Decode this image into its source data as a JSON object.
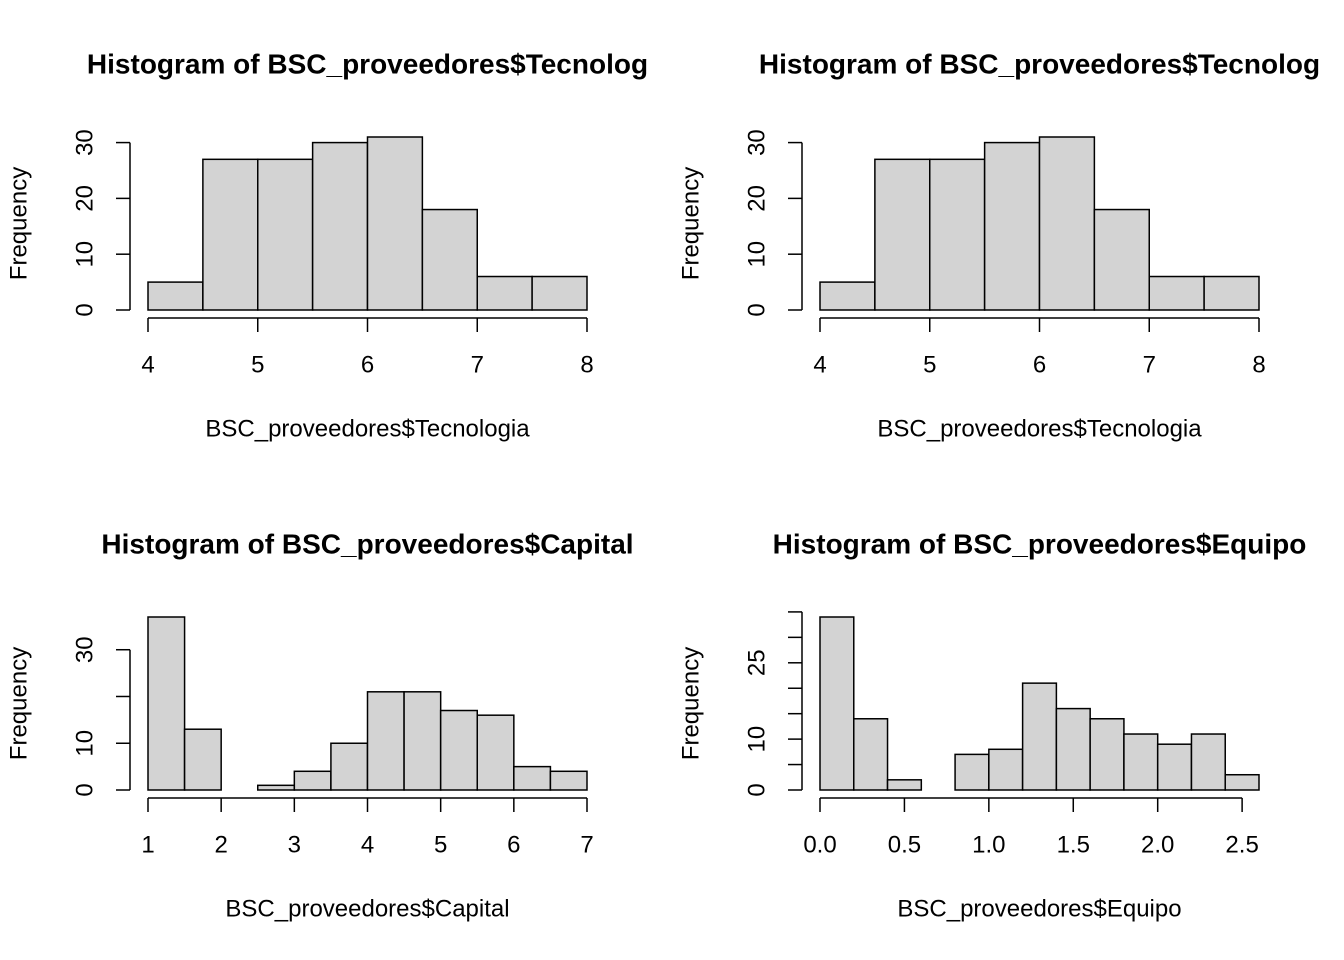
{
  "chart_data": [
    {
      "type": "histogram",
      "title": "Histogram of BSC_proveedores$Tecnolog",
      "xlabel": "BSC_proveedores$Tecnologia",
      "ylabel": "Frequency",
      "bins": [
        4,
        4.5,
        5,
        5.5,
        6,
        6.5,
        7,
        7.5,
        8
      ],
      "values": [
        5,
        27,
        27,
        30,
        31,
        18,
        6,
        6
      ],
      "color": "#d3d3d3",
      "xlim": [
        4,
        8
      ],
      "ylim": [
        0,
        31
      ],
      "xticks": [
        4,
        5,
        6,
        7,
        8
      ],
      "yticks": [
        0,
        10,
        20,
        30
      ]
    },
    {
      "type": "histogram",
      "title": "Histogram of BSC_proveedores$Tecnolog",
      "xlabel": "BSC_proveedores$Tecnologia",
      "ylabel": "Frequency",
      "bins": [
        4,
        4.5,
        5,
        5.5,
        6,
        6.5,
        7,
        7.5,
        8
      ],
      "values": [
        5,
        27,
        27,
        30,
        31,
        18,
        6,
        6
      ],
      "color": "#d3d3d3",
      "xlim": [
        4,
        8
      ],
      "ylim": [
        0,
        31
      ],
      "xticks": [
        4,
        5,
        6,
        7,
        8
      ],
      "yticks": [
        0,
        10,
        20,
        30
      ]
    },
    {
      "type": "histogram",
      "title": "Histogram of BSC_proveedores$Capital",
      "xlabel": "BSC_proveedores$Capital",
      "ylabel": "Frequency",
      "bins": [
        1,
        1.5,
        2,
        2.5,
        3,
        3.5,
        4,
        4.5,
        5,
        5.5,
        6,
        6.5,
        7
      ],
      "values": [
        37,
        13,
        0,
        1,
        4,
        10,
        21,
        21,
        17,
        16,
        5,
        4
      ],
      "color": "#d3d3d3",
      "xlim": [
        1,
        7
      ],
      "ylim": [
        0,
        37
      ],
      "xticks": [
        1,
        2,
        3,
        4,
        5,
        6,
        7
      ],
      "yticks": [
        0,
        10,
        30
      ],
      "ytick_marks": [
        0,
        10,
        20,
        30
      ]
    },
    {
      "type": "histogram",
      "title": "Histogram of BSC_proveedores$Equipo",
      "xlabel": "BSC_proveedores$Equipo",
      "ylabel": "Frequency",
      "bins": [
        0,
        0.2,
        0.4,
        0.6,
        0.8,
        1.0,
        1.2,
        1.4,
        1.6,
        1.8,
        2.0,
        2.2,
        2.4,
        2.6
      ],
      "values": [
        34,
        14,
        2,
        0,
        7,
        8,
        21,
        16,
        14,
        11,
        9,
        11,
        3
      ],
      "color": "#d3d3d3",
      "xlim": [
        0,
        2.6
      ],
      "ylim": [
        0,
        34
      ],
      "xticks": [
        {
          "value": 0,
          "label": "0.0"
        },
        {
          "value": 0.5,
          "label": "0.5"
        },
        {
          "value": 1,
          "label": "1.0"
        },
        {
          "value": 1.5,
          "label": "1.5"
        },
        {
          "value": 2,
          "label": "2.0"
        },
        {
          "value": 2.5,
          "label": "2.5"
        }
      ],
      "yticks": [
        0,
        10,
        25
      ],
      "ytick_marks": [
        0,
        5,
        10,
        15,
        20,
        25,
        30,
        35
      ]
    }
  ]
}
